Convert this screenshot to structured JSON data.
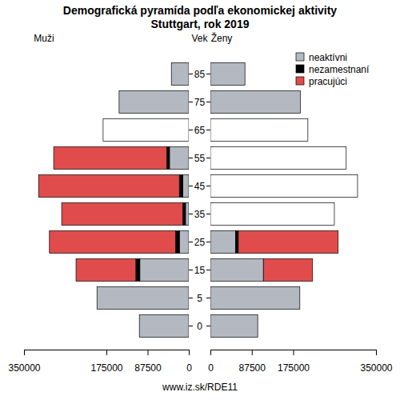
{
  "chart_data": {
    "type": "bar",
    "orientation": "horizontal",
    "stacked": true,
    "title": "Demografická pyramída podľa ekonomickej aktivity",
    "subtitle": "Stuttgart, rok 2019",
    "group_labels": [
      "Muži",
      "Ženy"
    ],
    "y_label": "Vek",
    "footer": "www.iz.sk/RDE11",
    "legend": "top-right",
    "categories": [
      "0",
      "5",
      "15",
      "25",
      "35",
      "45",
      "55",
      "65",
      "75",
      "85"
    ],
    "xlim": [
      0,
      350000
    ],
    "xticks": [
      0,
      87500,
      175000,
      350000
    ],
    "series": [
      {
        "name": "neaktívni",
        "color": "#b4b9c1",
        "men": [
          105000,
          195000,
          104000,
          20000,
          7000,
          13000,
          41000,
          null,
          148000,
          37000
        ],
        "women": [
          100000,
          189000,
          112000,
          53000,
          null,
          null,
          null,
          null,
          190000,
          73000
        ]
      },
      {
        "name": "nezamestnaní",
        "color": "#000000",
        "men": [
          null,
          null,
          8500,
          8000,
          6000,
          7000,
          6000,
          null,
          null,
          null
        ],
        "women": [
          null,
          null,
          0,
          6000,
          null,
          null,
          null,
          null,
          null,
          null
        ]
      },
      {
        "name": "pracujúci",
        "color": "#e04c4c",
        "men": [
          null,
          null,
          127000,
          268000,
          257000,
          299000,
          240000,
          null,
          null,
          null
        ],
        "women": [
          null,
          null,
          104000,
          211000,
          null,
          null,
          null,
          null,
          null,
          null
        ]
      }
    ],
    "unspecified": {
      "color": "#ffffff",
      "men": [
        null,
        null,
        null,
        null,
        null,
        null,
        null,
        182000,
        null,
        null
      ],
      "women": [
        null,
        null,
        null,
        null,
        262000,
        311000,
        287000,
        206000,
        null,
        null
      ]
    }
  }
}
